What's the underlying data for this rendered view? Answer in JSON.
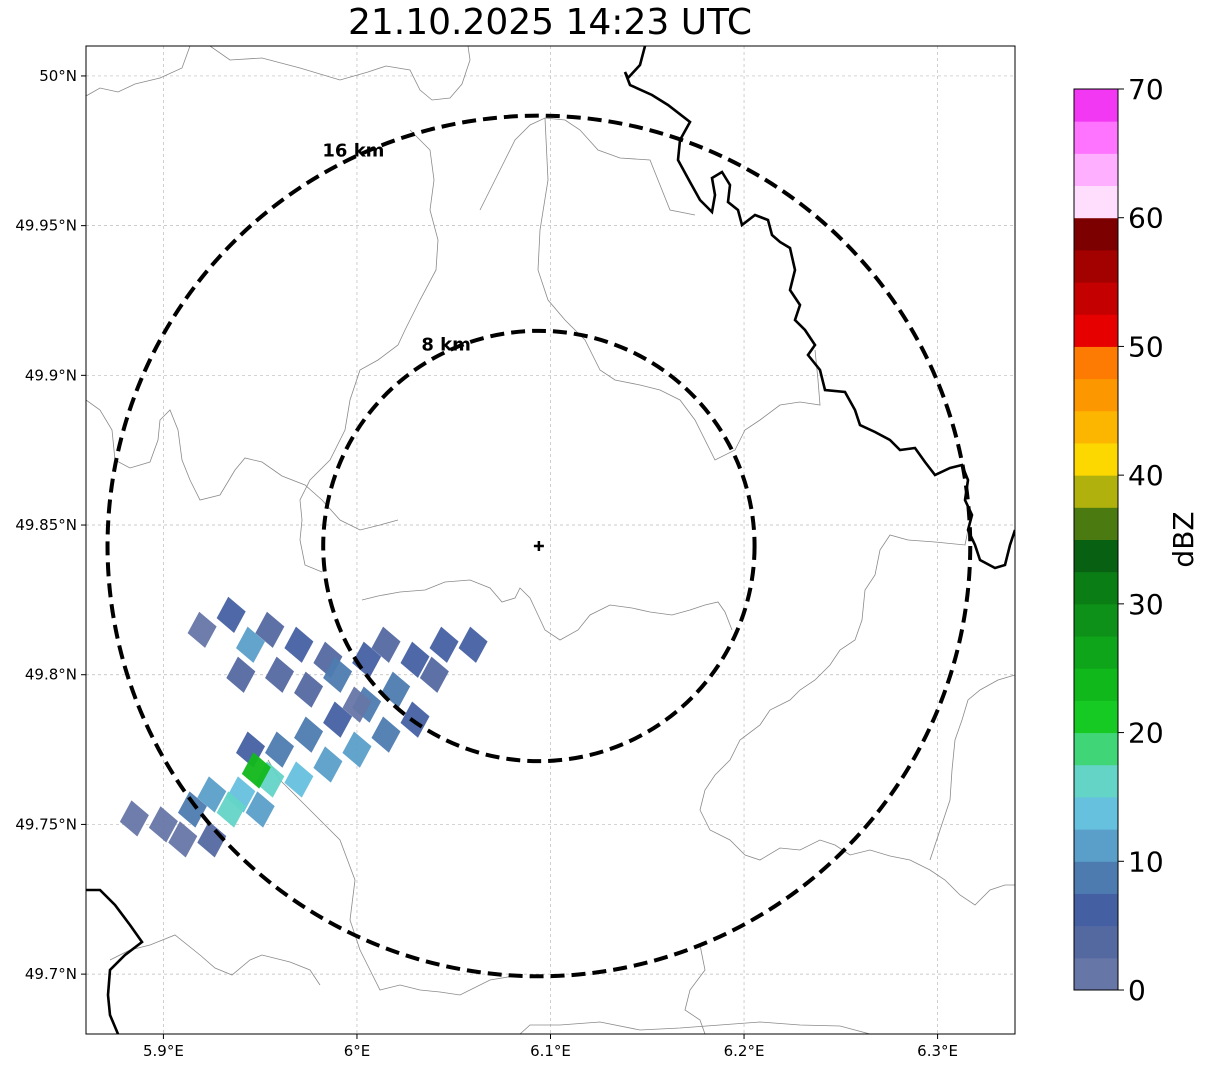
{
  "title": "21.10.2025 14:23 UTC",
  "map": {
    "lon_range": [
      5.86,
      6.34
    ],
    "lat_range": [
      49.68,
      50.01
    ],
    "x_ticks": [
      {
        "value": 5.9,
        "label": "5.9°E"
      },
      {
        "value": 6.0,
        "label": "6°E"
      },
      {
        "value": 6.1,
        "label": "6.1°E"
      },
      {
        "value": 6.2,
        "label": "6.2°E"
      },
      {
        "value": 6.3,
        "label": "6.3°E"
      }
    ],
    "y_ticks": [
      {
        "value": 49.7,
        "label": "49.7°N"
      },
      {
        "value": 49.75,
        "label": "49.75°N"
      },
      {
        "value": 49.8,
        "label": "49.8°N"
      },
      {
        "value": 49.85,
        "label": "49.85°N"
      },
      {
        "value": 49.9,
        "label": "49.9°N"
      },
      {
        "value": 49.95,
        "label": "49.95°N"
      },
      {
        "value": 50.0,
        "label": "50°N"
      }
    ],
    "grid": true,
    "radar_site": {
      "lon": 6.094,
      "lat": 49.843
    },
    "range_rings": [
      {
        "radius_km": 8,
        "label": "8 km"
      },
      {
        "radius_km": 16,
        "label": "16 km"
      }
    ]
  },
  "colorbar": {
    "label": "dBZ",
    "min": 0,
    "max": 70,
    "tick_values": [
      0,
      10,
      20,
      30,
      40,
      50,
      60,
      70
    ],
    "tick_labels": [
      "0",
      "10",
      "20",
      "30",
      "40",
      "50",
      "60",
      "70"
    ],
    "step": 2.5,
    "colors": [
      "#6676a7",
      "#5569a1",
      "#4460a3",
      "#4d7bb0",
      "#5a9fc9",
      "#66c1de",
      "#63d4c6",
      "#40d677",
      "#16c923",
      "#11b81b",
      "#0fa51a",
      "#0e9118",
      "#0b7d15",
      "#086112",
      "#4b7a10",
      "#b0b10c",
      "#fdd700",
      "#fdb600",
      "#fc9700",
      "#fd7b02",
      "#e60000",
      "#c40000",
      "#a30000",
      "#7c0000",
      "#ffddfd",
      "#ffafff",
      "#ff74ff",
      "#f238f3"
    ]
  },
  "echoes": {
    "note_hidden": true,
    "cells": [
      {
        "lon": 5.92,
        "lat": 49.815,
        "dbz": 2
      },
      {
        "lon": 5.935,
        "lat": 49.82,
        "dbz": 5
      },
      {
        "lon": 5.945,
        "lat": 49.81,
        "dbz": 12
      },
      {
        "lon": 5.955,
        "lat": 49.815,
        "dbz": 3
      },
      {
        "lon": 5.97,
        "lat": 49.81,
        "dbz": 6
      },
      {
        "lon": 5.985,
        "lat": 49.805,
        "dbz": 3
      },
      {
        "lon": 5.99,
        "lat": 49.8,
        "dbz": 8
      },
      {
        "lon": 5.975,
        "lat": 49.795,
        "dbz": 3
      },
      {
        "lon": 5.96,
        "lat": 49.8,
        "dbz": 4
      },
      {
        "lon": 5.94,
        "lat": 49.8,
        "dbz": 3
      },
      {
        "lon": 6.005,
        "lat": 49.805,
        "dbz": 6
      },
      {
        "lon": 6.015,
        "lat": 49.81,
        "dbz": 4
      },
      {
        "lon": 6.03,
        "lat": 49.805,
        "dbz": 7
      },
      {
        "lon": 6.045,
        "lat": 49.81,
        "dbz": 5
      },
      {
        "lon": 6.06,
        "lat": 49.81,
        "dbz": 6
      },
      {
        "lon": 6.04,
        "lat": 49.8,
        "dbz": 4
      },
      {
        "lon": 6.02,
        "lat": 49.795,
        "dbz": 8
      },
      {
        "lon": 6.005,
        "lat": 49.79,
        "dbz": 9
      },
      {
        "lon": 5.99,
        "lat": 49.785,
        "dbz": 7
      },
      {
        "lon": 5.975,
        "lat": 49.78,
        "dbz": 8
      },
      {
        "lon": 5.96,
        "lat": 49.775,
        "dbz": 9
      },
      {
        "lon": 5.945,
        "lat": 49.775,
        "dbz": 6
      },
      {
        "lon": 6.0,
        "lat": 49.775,
        "dbz": 12
      },
      {
        "lon": 6.015,
        "lat": 49.78,
        "dbz": 9
      },
      {
        "lon": 6.03,
        "lat": 49.785,
        "dbz": 7
      },
      {
        "lon": 5.985,
        "lat": 49.77,
        "dbz": 10
      },
      {
        "lon": 5.97,
        "lat": 49.765,
        "dbz": 13
      },
      {
        "lon": 5.955,
        "lat": 49.765,
        "dbz": 17
      },
      {
        "lon": 5.948,
        "lat": 49.768,
        "dbz": 23
      },
      {
        "lon": 5.94,
        "lat": 49.76,
        "dbz": 14
      },
      {
        "lon": 5.925,
        "lat": 49.76,
        "dbz": 12
      },
      {
        "lon": 5.935,
        "lat": 49.755,
        "dbz": 15
      },
      {
        "lon": 5.95,
        "lat": 49.755,
        "dbz": 11
      },
      {
        "lon": 5.915,
        "lat": 49.755,
        "dbz": 8
      },
      {
        "lon": 5.9,
        "lat": 49.75,
        "dbz": 2
      },
      {
        "lon": 5.885,
        "lat": 49.752,
        "dbz": 1
      },
      {
        "lon": 5.91,
        "lat": 49.745,
        "dbz": 2
      },
      {
        "lon": 5.925,
        "lat": 49.745,
        "dbz": 3
      },
      {
        "lon": 6.0,
        "lat": 49.79,
        "dbz": 1
      }
    ]
  }
}
